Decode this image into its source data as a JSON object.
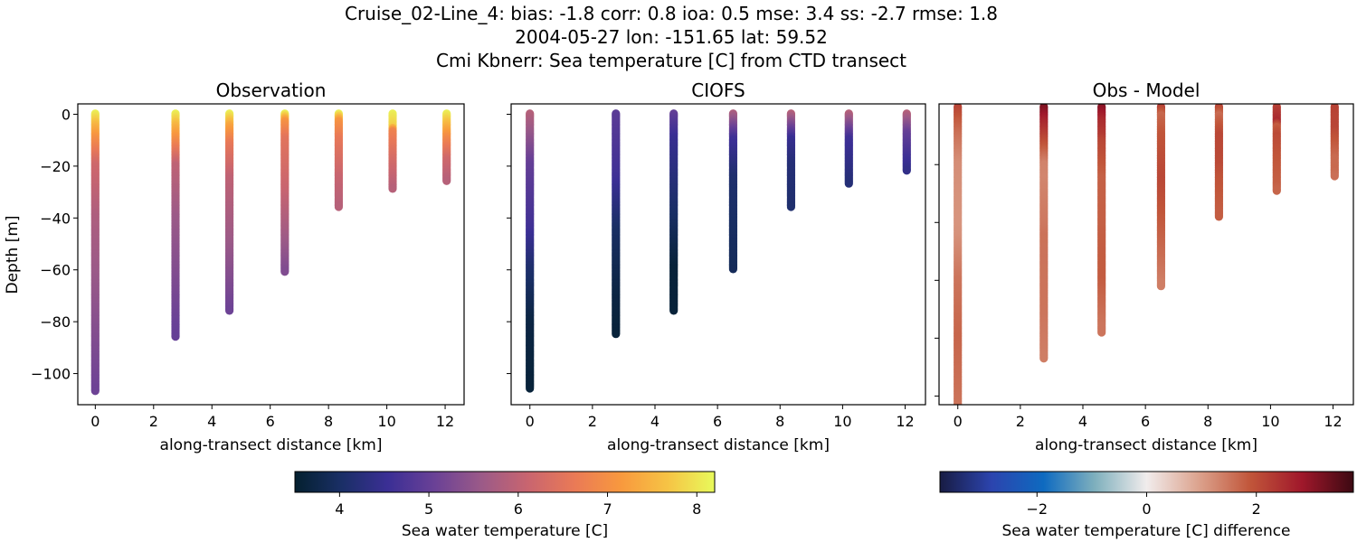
{
  "chart_data": {
    "type": "scatter",
    "title_lines": [
      "Cruise_02-Line_4: bias: -1.8  corr: 0.8  ioa: 0.5  mse: 3.4  ss: -2.7  rmse: 1.8",
      "2004-05-27 lon: -151.65 lat: 59.52",
      "Cmi Kbnerr: Sea temperature [C] from CTD transect"
    ],
    "xlabel": "along-transect distance [km]",
    "ylabel": "Depth [m]",
    "xlim": [
      -0.6,
      12.65
    ],
    "xticks": [
      0,
      2,
      4,
      6,
      8,
      10,
      12
    ],
    "panels": [
      {
        "title": "Observation",
        "source": "obs",
        "ylim": [
          -112,
          4
        ],
        "yticks": [
          0,
          -20,
          -40,
          -60,
          -80,
          -100
        ],
        "show_yticklabels": true
      },
      {
        "title": "CIOFS",
        "source": "model",
        "ylim": [
          -112,
          4
        ],
        "yticks": [
          0,
          -20,
          -40,
          -60,
          -80,
          -100
        ],
        "show_yticklabels": false
      },
      {
        "title": "Obs - Model",
        "source": "diff",
        "ylim": [
          -103,
          1
        ],
        "yticks": [
          -20,
          -40,
          -60,
          -80,
          -100
        ],
        "show_yticklabels": false
      }
    ],
    "stations": [
      {
        "distance_km": 0,
        "obs_bottom": -107,
        "model_bottom": -106,
        "obs": [
          [
            0,
            8.1
          ],
          [
            -5,
            7.5
          ],
          [
            -10,
            7.0
          ],
          [
            -20,
            6.2
          ],
          [
            -40,
            5.8
          ],
          [
            -70,
            5.5
          ],
          [
            -107,
            5.1
          ]
        ],
        "model": [
          [
            0,
            5.9
          ],
          [
            -20,
            5.0
          ],
          [
            -45,
            4.6
          ],
          [
            -60,
            4.1
          ],
          [
            -80,
            3.7
          ],
          [
            -106,
            3.6
          ]
        ]
      },
      {
        "distance_km": 2.75,
        "obs_bottom": -86,
        "model_bottom": -85,
        "obs": [
          [
            0,
            8.1
          ],
          [
            -5,
            7.5
          ],
          [
            -12,
            6.8
          ],
          [
            -20,
            6.0
          ],
          [
            -40,
            5.6
          ],
          [
            -86,
            5.0
          ]
        ],
        "model": [
          [
            0,
            4.9
          ],
          [
            -25,
            4.6
          ],
          [
            -45,
            4.0
          ],
          [
            -70,
            3.7
          ],
          [
            -85,
            3.6
          ]
        ]
      },
      {
        "distance_km": 4.6,
        "obs_bottom": -76,
        "model_bottom": -76,
        "obs": [
          [
            0,
            8.1
          ],
          [
            -5,
            7.3
          ],
          [
            -12,
            6.6
          ],
          [
            -25,
            6.0
          ],
          [
            -50,
            5.6
          ],
          [
            -76,
            5.1
          ]
        ],
        "model": [
          [
            0,
            5.0
          ],
          [
            -10,
            4.5
          ],
          [
            -40,
            4.0
          ],
          [
            -60,
            3.6
          ],
          [
            -76,
            3.6
          ]
        ]
      },
      {
        "distance_km": 6.5,
        "obs_bottom": -61,
        "model_bottom": -60,
        "obs": [
          [
            0,
            8.1
          ],
          [
            -3,
            7.1
          ],
          [
            -10,
            6.5
          ],
          [
            -30,
            6.1
          ],
          [
            -50,
            5.6
          ],
          [
            -61,
            5.3
          ]
        ],
        "model": [
          [
            0,
            5.8
          ],
          [
            -10,
            4.6
          ],
          [
            -25,
            4.1
          ],
          [
            -60,
            3.9
          ]
        ]
      },
      {
        "distance_km": 8.35,
        "obs_bottom": -36,
        "model_bottom": -36,
        "obs": [
          [
            0,
            8.1
          ],
          [
            -3,
            7.1
          ],
          [
            -10,
            6.6
          ],
          [
            -25,
            6.1
          ],
          [
            -36,
            5.9
          ]
        ],
        "model": [
          [
            0,
            5.9
          ],
          [
            -10,
            4.5
          ],
          [
            -20,
            4.2
          ],
          [
            -36,
            4.1
          ]
        ]
      },
      {
        "distance_km": 10.2,
        "obs_bottom": -29,
        "model_bottom": -27,
        "obs": [
          [
            0,
            8.1
          ],
          [
            -5,
            7.8
          ],
          [
            -7,
            6.8
          ],
          [
            -18,
            6.3
          ],
          [
            -29,
            5.9
          ]
        ],
        "model": [
          [
            0,
            5.9
          ],
          [
            -10,
            4.6
          ],
          [
            -27,
            4.2
          ]
        ]
      },
      {
        "distance_km": 12.05,
        "obs_bottom": -26,
        "model_bottom": -22,
        "obs": [
          [
            0,
            8.1
          ],
          [
            -4,
            7.6
          ],
          [
            -10,
            6.9
          ],
          [
            -18,
            6.2
          ],
          [
            -26,
            5.9
          ]
        ],
        "model": [
          [
            0,
            5.9
          ],
          [
            -8,
            5.0
          ],
          [
            -22,
            4.4
          ]
        ]
      }
    ],
    "colorbars": [
      {
        "label": "Sea water temperature [C]",
        "colormap": "thermal",
        "range": [
          3.5,
          8.2
        ],
        "ticks": [
          4,
          5,
          6,
          7,
          8
        ]
      },
      {
        "label": "Sea water temperature [C] difference",
        "colormap": "balance",
        "range": [
          -3.77,
          3.77
        ],
        "ticks": [
          -2,
          0,
          2
        ],
        "tick_labels": [
          "−2",
          "0",
          "2"
        ]
      }
    ]
  },
  "colormaps": {
    "thermal": [
      "#04202f",
      "#1a2f66",
      "#3b2f95",
      "#6a4196",
      "#9b5a88",
      "#c9656f",
      "#ea7a56",
      "#f8993e",
      "#f6c445",
      "#e8fa5b"
    ],
    "balance": [
      "#181c43",
      "#2c44ae",
      "#0e6ac0",
      "#7fb0bd",
      "#f1ecec",
      "#dca38e",
      "#c1563a",
      "#a0182b",
      "#3c0912"
    ]
  }
}
